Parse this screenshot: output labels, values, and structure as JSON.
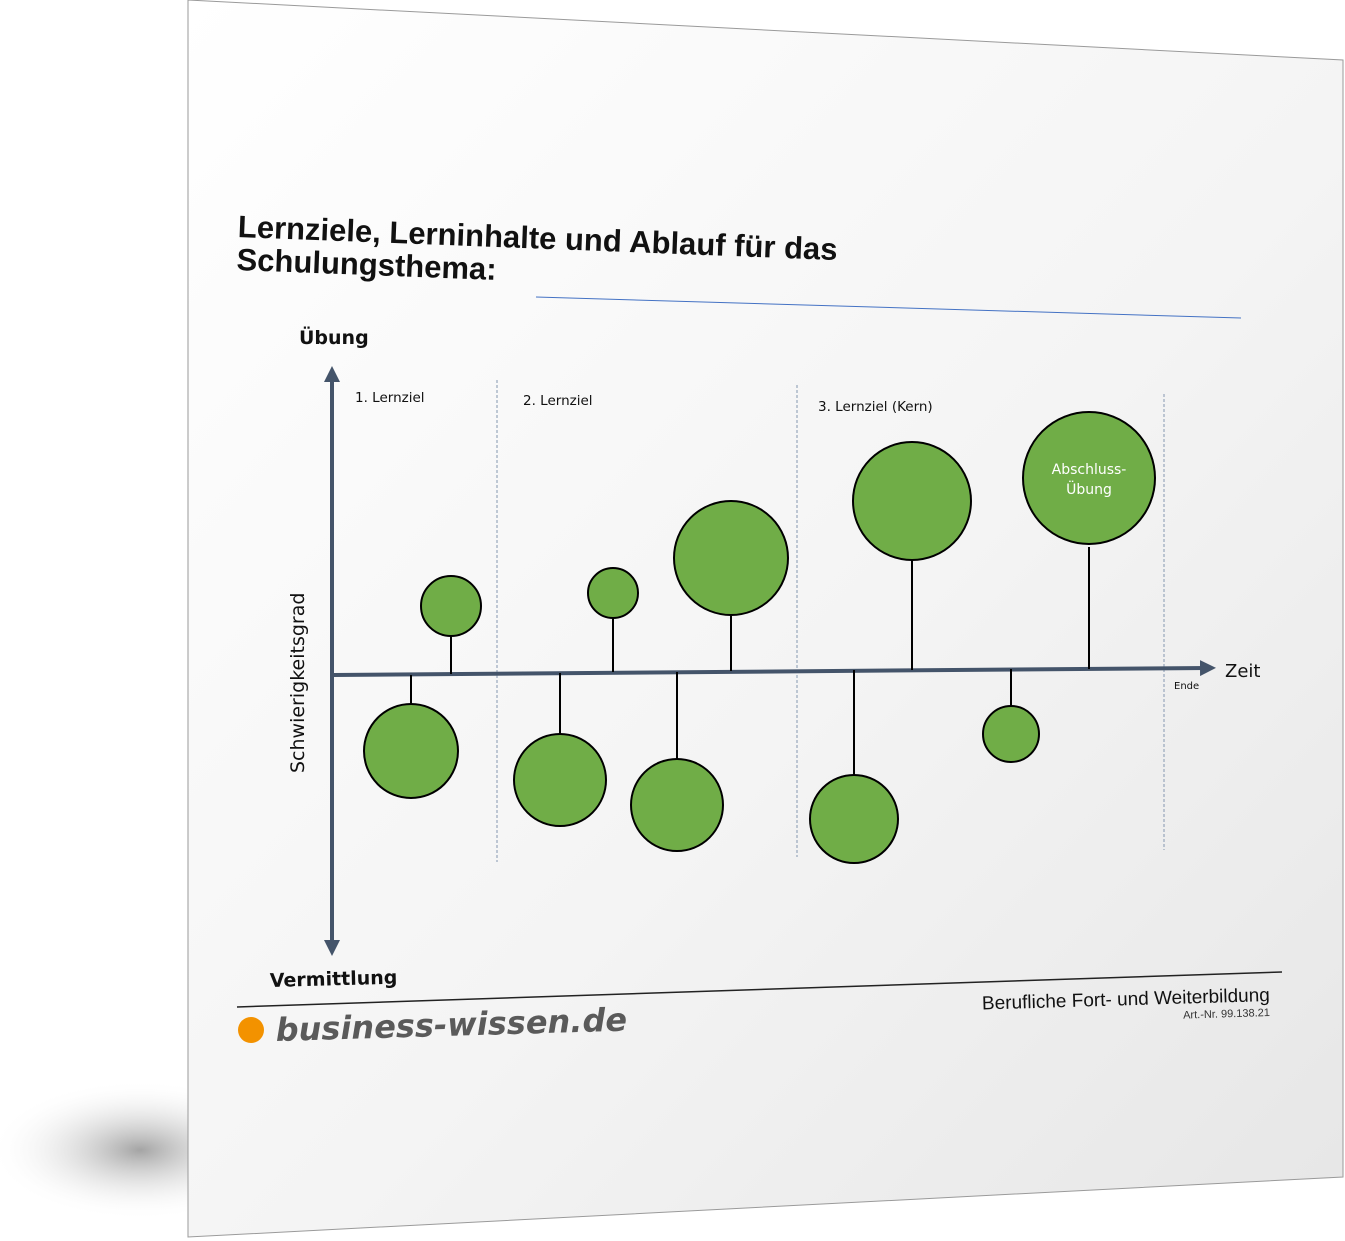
{
  "document": {
    "title_line1": "Lernziele, Lerninhalte und Ablauf für das",
    "title_line2": "Schulungsthema:"
  },
  "diagram": {
    "y_axis_top_label": "Übung",
    "y_axis_bottom_label": "Vermittlung",
    "y_axis_title": "Schwierigkeitsgrad",
    "x_axis_label": "Zeit",
    "end_label": "Ende",
    "sections": [
      "1. Lernziel",
      "2. Lernziel",
      "3. Lernziel (Kern)"
    ],
    "final_bubble_label_line1": "Abschluss-",
    "final_bubble_label_line2": "Übung",
    "bubble_color": "#70ad47",
    "axis_color": "#44546a",
    "divider_color": "#8497b0"
  },
  "footer": {
    "brand": "business-wissen.de",
    "brand_dot_color": "#f39200",
    "series": "Berufliche Fort- und Weiterbildung",
    "article_number": "Art.-Nr. 99.138.21"
  }
}
